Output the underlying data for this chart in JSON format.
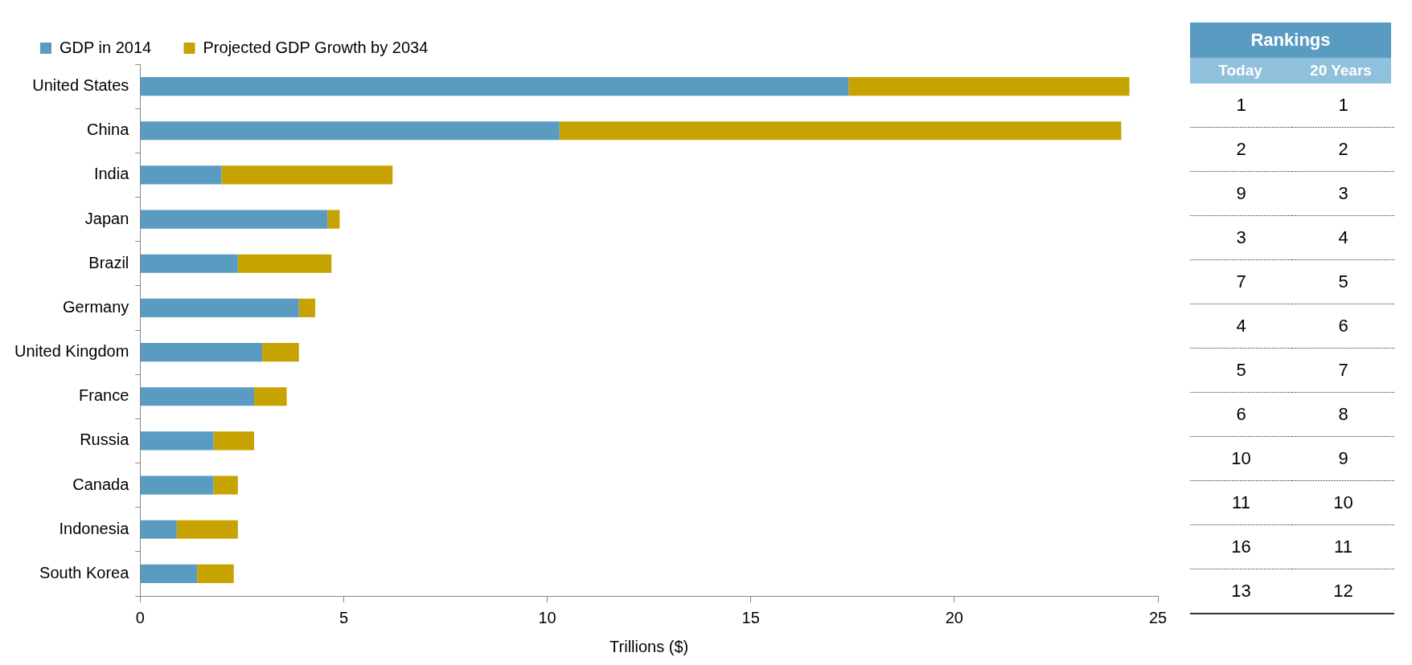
{
  "chart_data": [
    {
      "type": "bar",
      "orientation": "horizontal",
      "stacked": true,
      "xlabel": "Trillions ($)",
      "legend": "top left",
      "grid": false,
      "categories": [
        "United States",
        "China",
        "India",
        "Japan",
        "Brazil",
        "Germany",
        "United Kingdom",
        "France",
        "Russia",
        "Canada",
        "Indonesia",
        "South Korea"
      ],
      "series": [
        {
          "name": "GDP in 2014",
          "color": "#5a9bc1",
          "values": [
            17.4,
            10.3,
            2.0,
            4.6,
            2.4,
            3.9,
            3.0,
            2.8,
            1.8,
            1.8,
            0.9,
            1.4
          ]
        },
        {
          "name": "Projected GDP Growth by 2034",
          "color": "#c6a300",
          "values": [
            6.9,
            13.8,
            4.2,
            0.3,
            2.3,
            0.4,
            0.9,
            0.8,
            1.0,
            0.6,
            1.5,
            0.9
          ]
        }
      ],
      "xlim": [
        0,
        25
      ],
      "xticks": [
        0,
        5,
        10,
        15,
        20,
        25
      ]
    },
    {
      "type": "heatmap",
      "title": "Rankings",
      "categories": [
        "Today",
        "20 Years"
      ],
      "y_categories": [
        null,
        null,
        null,
        null,
        null,
        null,
        null,
        null,
        null,
        null,
        null,
        null
      ],
      "cells": [
        [
          1,
          1
        ],
        [
          2,
          2
        ],
        [
          9,
          3
        ],
        [
          3,
          4
        ],
        [
          7,
          5
        ],
        [
          4,
          6
        ],
        [
          5,
          7
        ],
        [
          6,
          8
        ],
        [
          10,
          9
        ],
        [
          11,
          10
        ],
        [
          16,
          11
        ],
        [
          13,
          12
        ]
      ],
      "data_labels": true,
      "grid": true
    }
  ]
}
